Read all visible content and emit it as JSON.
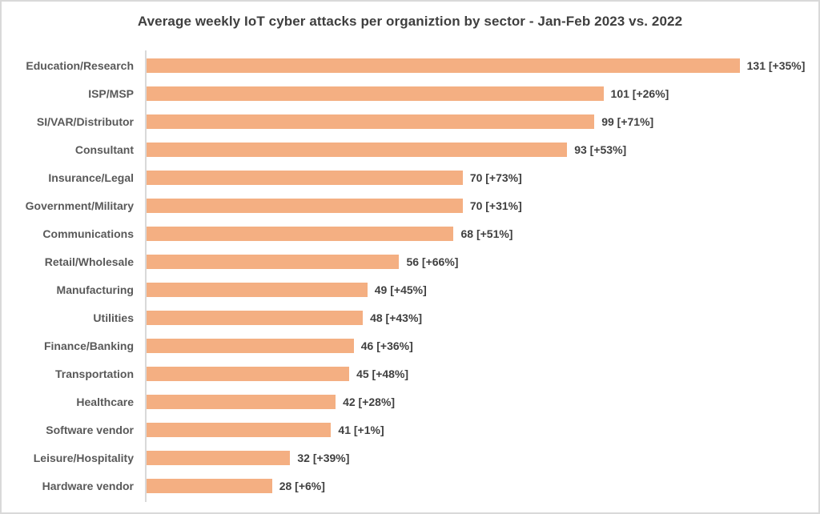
{
  "page": {
    "background": "#ffffff",
    "border_color": "#d9d9d9"
  },
  "chart_data": {
    "type": "bar",
    "orientation": "horizontal",
    "title": "Average weekly IoT cyber attacks per organiztion by sector - Jan-Feb 2023 vs. 2022",
    "categories": [
      "Education/Research",
      "ISP/MSP",
      "SI/VAR/Distributor",
      "Consultant",
      "Insurance/Legal",
      "Government/Military",
      "Communications",
      "Retail/Wholesale",
      "Manufacturing",
      "Utilities",
      "Finance/Banking",
      "Transportation",
      "Healthcare",
      "Software vendor",
      "Leisure/Hospitality",
      "Hardware vendor"
    ],
    "values": [
      131,
      101,
      99,
      93,
      70,
      70,
      68,
      56,
      49,
      48,
      46,
      45,
      42,
      41,
      32,
      28
    ],
    "pct_change_vs_2022": [
      "+35%",
      "+26%",
      "+71%",
      "+53%",
      "+73%",
      "+31%",
      "+51%",
      "+66%",
      "+45%",
      "+43%",
      "+36%",
      "+48%",
      "+28%",
      "+1%",
      "+39%",
      "+6%"
    ],
    "data_labels": [
      "131 [+35%]",
      "101 [+26%]",
      "99 [+71%]",
      "93 [+53%]",
      "70 [+73%]",
      "70 [+31%]",
      "68 [+51%]",
      "56 [+66%]",
      "49 [+45%]",
      "48 [+43%]",
      "46 [+36%]",
      "45 [+48%]",
      "42 [+28%]",
      "41 [+1%]",
      "32 [+39%]",
      "28 [+6%]"
    ],
    "xlim": [
      0,
      148
    ],
    "grid": false,
    "legend": false,
    "bar_color": "#F4AF82",
    "category_label_color": "#595959",
    "value_label_color": "#404040",
    "axis_line_color": "#d9d9d9",
    "title_color": "#3f3f3f"
  }
}
